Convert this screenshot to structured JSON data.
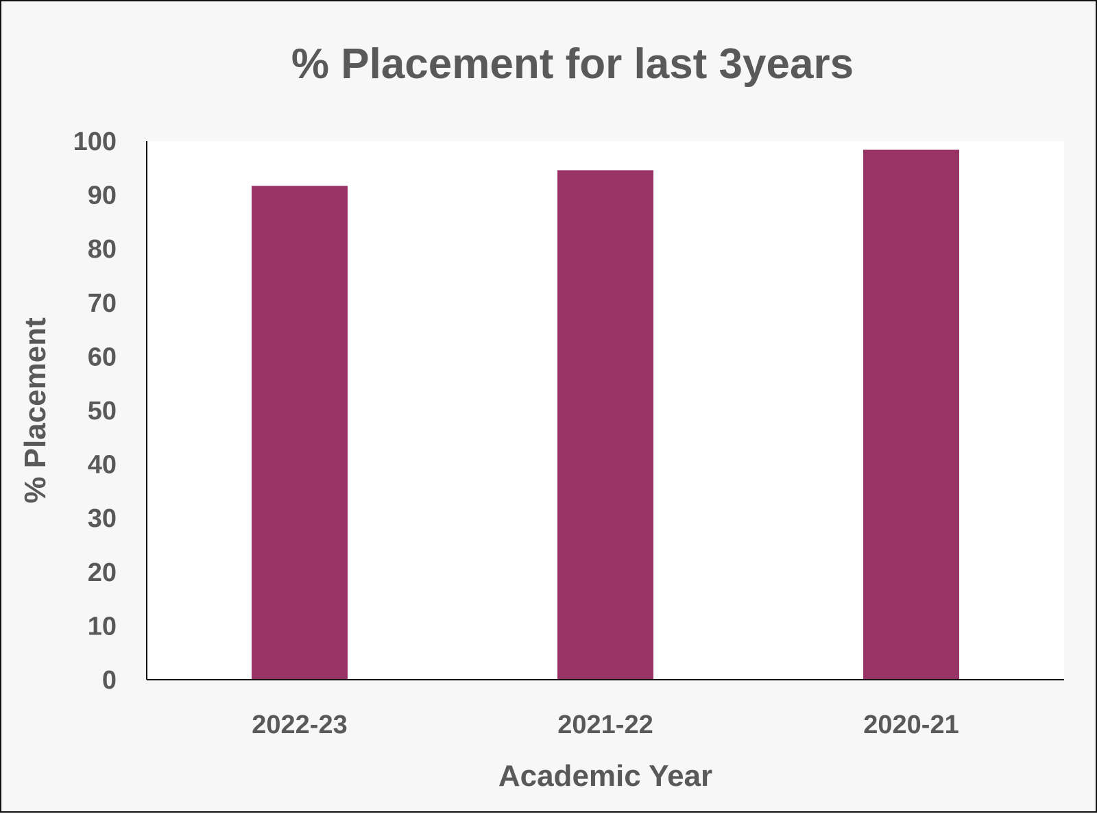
{
  "chart_data": {
    "type": "bar",
    "title": "% Placement for last 3years",
    "xlabel": "Academic Year",
    "ylabel": "% Placement",
    "categories": [
      "2022-23",
      "2021-22",
      "2020-21"
    ],
    "values": [
      91.7,
      94.6,
      98.4
    ],
    "ylim": [
      0,
      100
    ],
    "yticks": [
      0,
      10,
      20,
      30,
      40,
      50,
      60,
      70,
      80,
      90,
      100
    ],
    "grid": false,
    "legend": "none",
    "bar_color": "#993366"
  }
}
